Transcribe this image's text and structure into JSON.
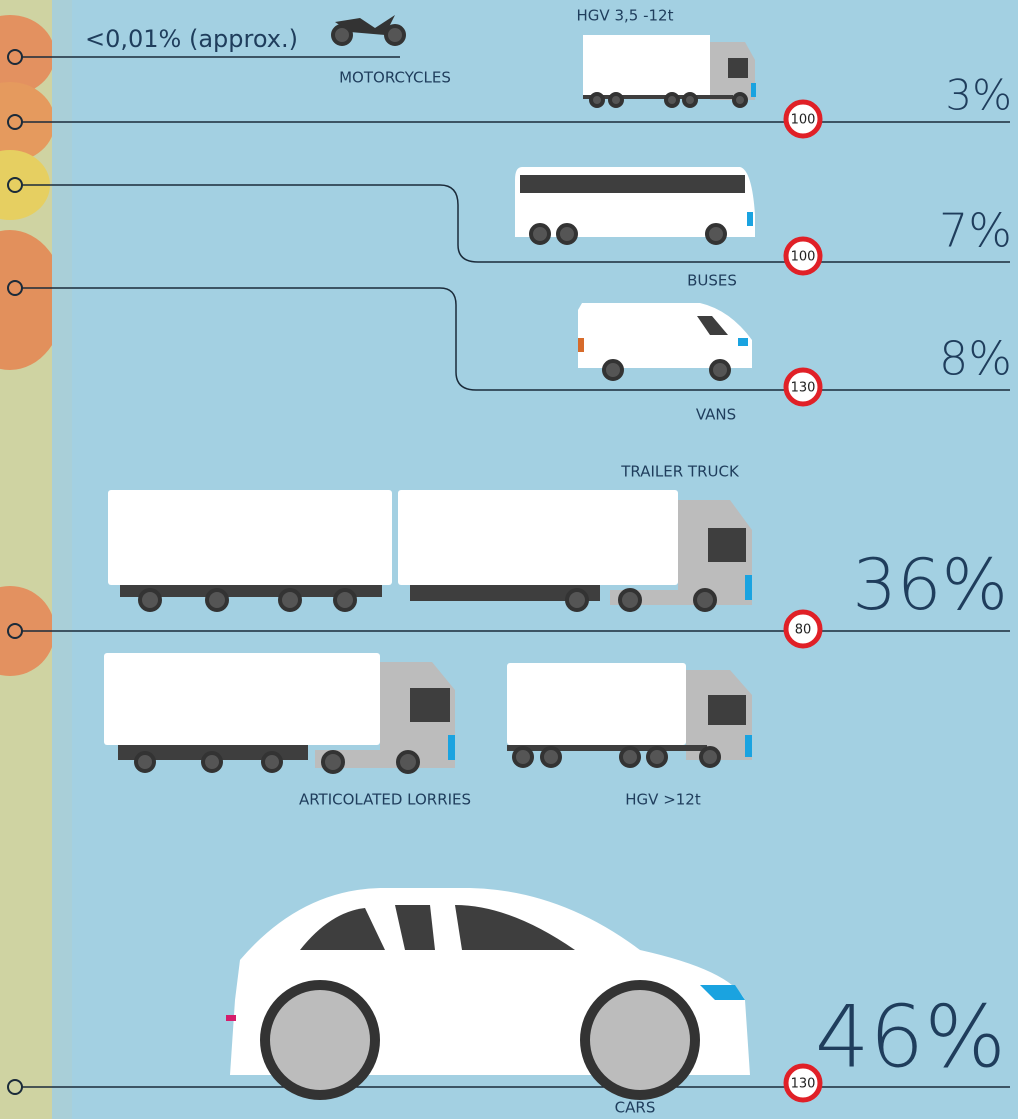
{
  "rows": [
    {
      "share": "<0,01% (approx.)",
      "label": "MOTORCYCLES"
    },
    {
      "label": "HGV  3,5 -12t",
      "speed_limit": "100",
      "share": "3%"
    },
    {
      "label": "BUSES",
      "speed_limit": "100",
      "share": "7%"
    },
    {
      "label": "VANS",
      "speed_limit": "130",
      "share": "8%"
    },
    {
      "labels": [
        "TRAILER TRUCK",
        "ARTICOLATED LORRIES",
        "HGV >12t"
      ],
      "speed_limit": "80",
      "share": "36%"
    },
    {
      "label": "CARS",
      "speed_limit": "130",
      "share": "46%"
    }
  ]
}
